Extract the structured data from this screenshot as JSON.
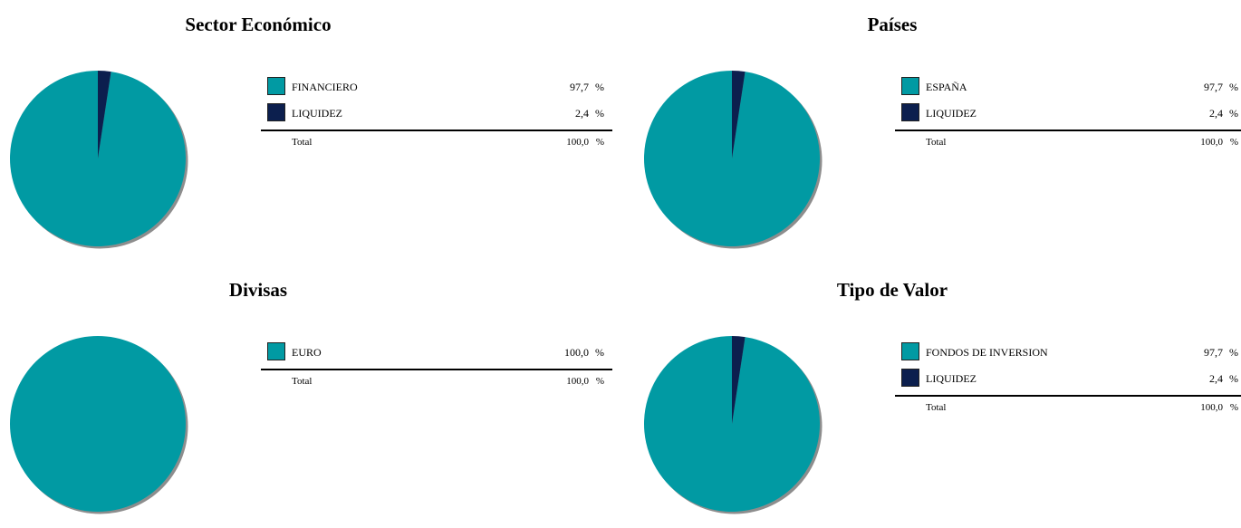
{
  "colors": {
    "teal": "#019aa3",
    "navy": "#0c1f4e",
    "shadow": "#8d8d8d"
  },
  "chart_data": [
    {
      "type": "pie",
      "title": "Sector Económico",
      "unit": "%",
      "slices": [
        {
          "label": "FINANCIERO",
          "value": 97.7,
          "display": "97,7",
          "color": "#019aa3"
        },
        {
          "label": "LIQUIDEZ",
          "value": 2.4,
          "display": "2,4",
          "color": "#0c1f4e"
        }
      ],
      "total": {
        "label": "Total",
        "display": "100,0"
      }
    },
    {
      "type": "pie",
      "title": "Países",
      "unit": "%",
      "slices": [
        {
          "label": "ESPAÑA",
          "value": 97.7,
          "display": "97,7",
          "color": "#019aa3"
        },
        {
          "label": "LIQUIDEZ",
          "value": 2.4,
          "display": "2,4",
          "color": "#0c1f4e"
        }
      ],
      "total": {
        "label": "Total",
        "display": "100,0"
      }
    },
    {
      "type": "pie",
      "title": "Divisas",
      "unit": "%",
      "slices": [
        {
          "label": "EURO",
          "value": 100.0,
          "display": "100,0",
          "color": "#019aa3"
        }
      ],
      "total": {
        "label": "Total",
        "display": "100,0"
      }
    },
    {
      "type": "pie",
      "title": "Tipo de Valor",
      "unit": "%",
      "slices": [
        {
          "label": "FONDOS DE INVERSION",
          "value": 97.7,
          "display": "97,7",
          "color": "#019aa3"
        },
        {
          "label": "LIQUIDEZ",
          "value": 2.4,
          "display": "2,4",
          "color": "#0c1f4e"
        }
      ],
      "total": {
        "label": "Total",
        "display": "100,0"
      }
    }
  ]
}
